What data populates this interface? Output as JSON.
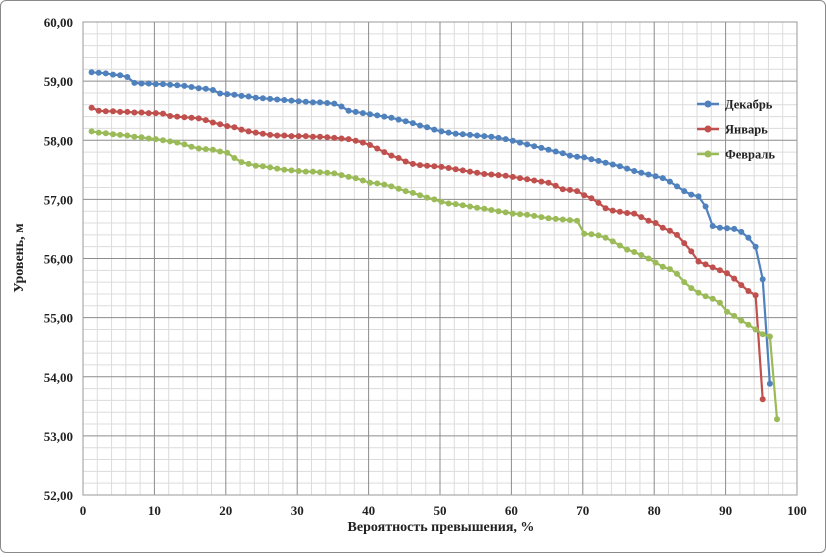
{
  "chart_data": {
    "type": "line",
    "title": "",
    "xlabel": "Вероятность превышения, %",
    "ylabel": "Уровень, м",
    "xlim": [
      0,
      100
    ],
    "ylim": [
      52,
      60
    ],
    "x_ticks": [
      0,
      10,
      20,
      30,
      40,
      50,
      60,
      70,
      80,
      90,
      100
    ],
    "y_ticks": [
      "52,00",
      "53,00",
      "54,00",
      "55,00",
      "56,00",
      "57,00",
      "58,00",
      "59,00",
      "60,00"
    ],
    "grid": true,
    "minor_grid": true,
    "legend_position": "right",
    "x": [
      1.2,
      2.2,
      3.2,
      4.2,
      5.2,
      6.2,
      7.2,
      8.2,
      9.2,
      10.2,
      11.2,
      12.2,
      13.2,
      14.2,
      15.2,
      16.2,
      17.2,
      18.2,
      19.2,
      20.2,
      21.2,
      22.2,
      23.2,
      24.2,
      25.2,
      26.2,
      27.2,
      28.2,
      29.2,
      30.2,
      31.2,
      32.2,
      33.2,
      34.2,
      35.2,
      36.2,
      37.2,
      38.2,
      39.2,
      40.2,
      41.2,
      42.2,
      43.2,
      44.2,
      45.2,
      46.2,
      47.2,
      48.2,
      49.2,
      50.2,
      51.2,
      52.2,
      53.2,
      54.2,
      55.2,
      56.2,
      57.2,
      58.2,
      59.2,
      60.2,
      61.2,
      62.2,
      63.2,
      64.2,
      65.2,
      66.2,
      67.2,
      68.2,
      69.2,
      70.2,
      71.2,
      72.2,
      73.2,
      74.2,
      75.2,
      76.2,
      77.2,
      78.2,
      79.2,
      80.2,
      81.2,
      82.2,
      83.2,
      84.2,
      85.2,
      86.2,
      87.2,
      88.2,
      89.2,
      90.2,
      91.2,
      92.2,
      93.2,
      94.2,
      95.2,
      96.2,
      97.2,
      98.2
    ],
    "series": [
      {
        "name": "Декабрь",
        "color": "#4F81BD",
        "values": [
          59.15,
          59.14,
          59.13,
          59.11,
          59.1,
          59.07,
          58.97,
          58.96,
          58.96,
          58.95,
          58.95,
          58.94,
          58.93,
          58.92,
          58.9,
          58.88,
          58.87,
          58.85,
          58.79,
          58.78,
          58.77,
          58.75,
          58.74,
          58.72,
          58.71,
          58.7,
          58.69,
          58.68,
          58.67,
          58.66,
          58.65,
          58.64,
          58.64,
          58.63,
          58.62,
          58.57,
          58.5,
          58.48,
          58.46,
          58.44,
          58.42,
          58.4,
          58.38,
          58.35,
          58.32,
          58.29,
          58.25,
          58.22,
          58.18,
          58.15,
          58.13,
          58.11,
          58.1,
          58.09,
          58.08,
          58.07,
          58.06,
          58.04,
          58.02,
          57.99,
          57.96,
          57.93,
          57.9,
          57.87,
          57.84,
          57.81,
          57.78,
          57.74,
          57.72,
          57.71,
          57.68,
          57.65,
          57.62,
          57.59,
          57.56,
          57.52,
          57.48,
          57.45,
          57.42,
          57.39,
          57.36,
          57.3,
          57.22,
          57.14,
          57.08,
          57.05,
          56.88,
          56.55,
          56.52,
          56.51,
          56.5,
          56.45,
          56.35,
          56.2,
          55.65,
          53.88,
          null,
          null
        ]
      },
      {
        "name": "Январь",
        "color": "#C0504D",
        "values": [
          58.55,
          58.5,
          58.49,
          58.49,
          58.48,
          58.48,
          58.47,
          58.47,
          58.46,
          58.46,
          58.45,
          58.41,
          58.4,
          58.39,
          58.38,
          58.37,
          58.34,
          58.3,
          58.27,
          58.24,
          58.22,
          58.18,
          58.15,
          58.13,
          58.11,
          58.09,
          58.08,
          58.08,
          58.07,
          58.07,
          58.07,
          58.06,
          58.06,
          58.05,
          58.04,
          58.03,
          58.02,
          57.99,
          57.96,
          57.92,
          57.86,
          57.8,
          57.74,
          57.7,
          57.64,
          57.6,
          57.58,
          57.57,
          57.56,
          57.55,
          57.53,
          57.51,
          57.49,
          57.47,
          57.45,
          57.43,
          57.42,
          57.41,
          57.4,
          57.38,
          57.36,
          57.34,
          57.32,
          57.3,
          57.28,
          57.23,
          57.17,
          57.16,
          57.14,
          57.07,
          57.02,
          56.94,
          56.85,
          56.81,
          56.79,
          56.77,
          56.76,
          56.7,
          56.64,
          56.6,
          56.52,
          56.47,
          56.4,
          56.26,
          56.12,
          55.95,
          55.9,
          55.85,
          55.8,
          55.75,
          55.66,
          55.55,
          55.45,
          55.38,
          53.62,
          null,
          null,
          null
        ]
      },
      {
        "name": "Февраль",
        "color": "#9BBB59",
        "values": [
          58.15,
          58.13,
          58.12,
          58.1,
          58.09,
          58.08,
          58.06,
          58.05,
          58.03,
          58.02,
          58.0,
          57.98,
          57.96,
          57.93,
          57.89,
          57.86,
          57.85,
          57.84,
          57.81,
          57.79,
          57.7,
          57.63,
          57.6,
          57.57,
          57.56,
          57.54,
          57.52,
          57.5,
          57.49,
          57.48,
          57.47,
          57.47,
          57.46,
          57.45,
          57.44,
          57.41,
          57.38,
          57.36,
          57.32,
          57.28,
          57.27,
          57.25,
          57.22,
          57.18,
          57.14,
          57.11,
          57.07,
          57.03,
          57.0,
          56.96,
          56.93,
          56.92,
          56.9,
          56.88,
          56.86,
          56.84,
          56.82,
          56.8,
          56.78,
          56.76,
          56.75,
          56.74,
          56.72,
          56.7,
          56.68,
          56.67,
          56.66,
          56.65,
          56.64,
          56.42,
          56.41,
          56.39,
          56.35,
          56.29,
          56.22,
          56.15,
          56.11,
          56.06,
          56.0,
          55.93,
          55.86,
          55.82,
          55.74,
          55.6,
          55.5,
          55.42,
          55.36,
          55.32,
          55.25,
          55.1,
          55.03,
          54.95,
          54.88,
          54.8,
          54.72,
          54.68,
          53.28,
          null
        ]
      }
    ]
  }
}
